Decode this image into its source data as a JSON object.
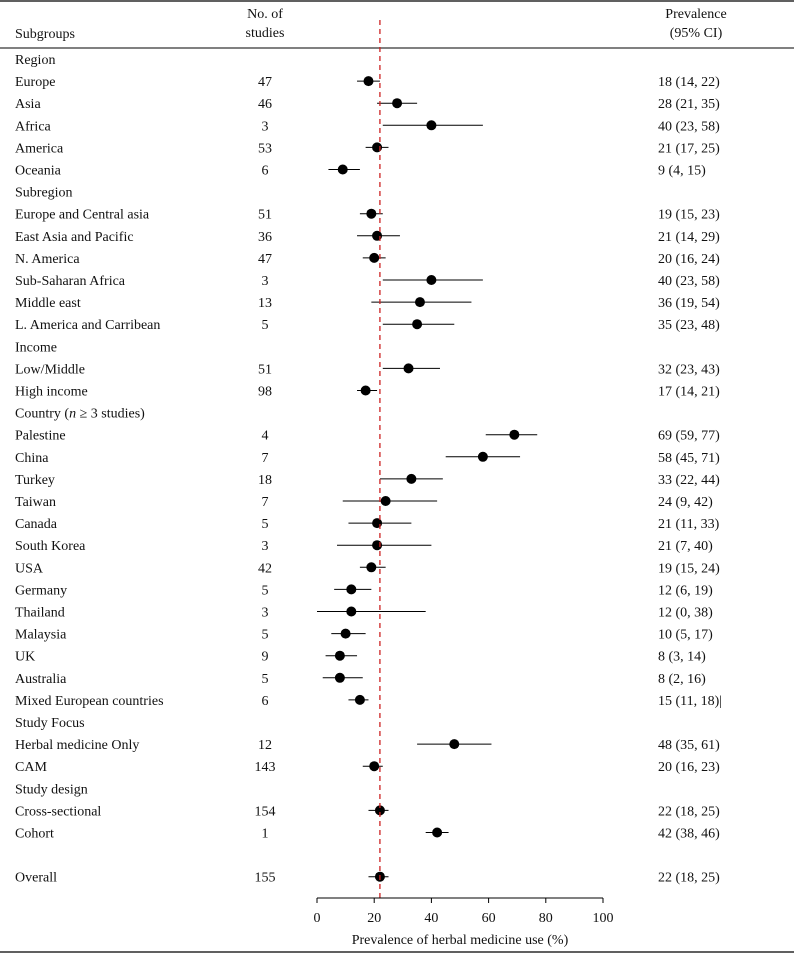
{
  "chart_data": {
    "type": "forest",
    "headers": {
      "subgroups": "Subgroups",
      "n_studies_line1": "No. of",
      "n_studies_line2": "studies",
      "prevalence_line1": "Prevalence",
      "prevalence_line2": "(95% CI)"
    },
    "xlabel": "Prevalence of herbal medicine use (%)",
    "xlim": [
      0,
      100
    ],
    "xticks": [
      0,
      20,
      40,
      60,
      80,
      100
    ],
    "reference_line": 22,
    "reference_color": "#cc2222",
    "marker_color": "#000000",
    "rows": [
      {
        "type": "header",
        "label": "Region"
      },
      {
        "type": "data",
        "label": "Europe",
        "n": "47",
        "est": 18,
        "lo": 14,
        "hi": 22,
        "ci": "18 (14, 22)"
      },
      {
        "type": "data",
        "label": "Asia",
        "n": "46",
        "est": 28,
        "lo": 21,
        "hi": 35,
        "ci": "28 (21, 35)"
      },
      {
        "type": "data",
        "label": "Africa",
        "n": "3",
        "est": 40,
        "lo": 23,
        "hi": 58,
        "ci": "40 (23, 58)"
      },
      {
        "type": "data",
        "label": "America",
        "n": "53",
        "est": 21,
        "lo": 17,
        "hi": 25,
        "ci": "21 (17, 25)"
      },
      {
        "type": "data",
        "label": "Oceania",
        "n": "6",
        "est": 9,
        "lo": 4,
        "hi": 15,
        "ci": "9 (4, 15)"
      },
      {
        "type": "header",
        "label": "Subregion"
      },
      {
        "type": "data",
        "label": "Europe and Central asia",
        "n": "51",
        "est": 19,
        "lo": 15,
        "hi": 23,
        "ci": "19 (15, 23)"
      },
      {
        "type": "data",
        "label": "East Asia and Pacific",
        "n": "36",
        "est": 21,
        "lo": 14,
        "hi": 29,
        "ci": "21 (14, 29)"
      },
      {
        "type": "data",
        "label": "N. America",
        "n": "47",
        "est": 20,
        "lo": 16,
        "hi": 24,
        "ci": "20 (16, 24)"
      },
      {
        "type": "data",
        "label": "Sub-Saharan Africa",
        "n": "3",
        "est": 40,
        "lo": 23,
        "hi": 58,
        "ci": "40 (23, 58)"
      },
      {
        "type": "data",
        "label": "Middle east",
        "n": "13",
        "est": 36,
        "lo": 19,
        "hi": 54,
        "ci": "36 (19, 54)"
      },
      {
        "type": "data",
        "label": "L. America and Carribean",
        "n": "5",
        "est": 35,
        "lo": 23,
        "hi": 48,
        "ci": "35 (23, 48)"
      },
      {
        "type": "header",
        "label": "Income"
      },
      {
        "type": "data",
        "label": "Low/Middle",
        "n": "51",
        "est": 32,
        "lo": 23,
        "hi": 43,
        "ci": "32 (23, 43)"
      },
      {
        "type": "data",
        "label": "High income",
        "n": "98",
        "est": 17,
        "lo": 14,
        "hi": 21,
        "ci": "17 (14, 21)"
      },
      {
        "type": "header",
        "label": "Country (n ≥ 3 studies)"
      },
      {
        "type": "data",
        "label": "Palestine",
        "n": "4",
        "est": 69,
        "lo": 59,
        "hi": 77,
        "ci": "69 (59, 77)"
      },
      {
        "type": "data",
        "label": "China",
        "n": "7",
        "est": 58,
        "lo": 45,
        "hi": 71,
        "ci": "58 (45, 71)"
      },
      {
        "type": "data",
        "label": "Turkey",
        "n": "18",
        "est": 33,
        "lo": 22,
        "hi": 44,
        "ci": "33 (22, 44)"
      },
      {
        "type": "data",
        "label": "Taiwan",
        "n": "7",
        "est": 24,
        "lo": 9,
        "hi": 42,
        "ci": "24 (9, 42)"
      },
      {
        "type": "data",
        "label": "Canada",
        "n": "5",
        "est": 21,
        "lo": 11,
        "hi": 33,
        "ci": "21 (11, 33)"
      },
      {
        "type": "data",
        "label": "South Korea",
        "n": "3",
        "est": 21,
        "lo": 7,
        "hi": 40,
        "ci": "21 (7, 40)"
      },
      {
        "type": "data",
        "label": "USA",
        "n": "42",
        "est": 19,
        "lo": 15,
        "hi": 24,
        "ci": "19 (15, 24)"
      },
      {
        "type": "data",
        "label": "Germany",
        "n": "5",
        "est": 12,
        "lo": 6,
        "hi": 19,
        "ci": "12 (6, 19)"
      },
      {
        "type": "data",
        "label": "Thailand",
        "n": "3",
        "est": 12,
        "lo": 0,
        "hi": 38,
        "ci": "12 (0, 38)"
      },
      {
        "type": "data",
        "label": "Malaysia",
        "n": "5",
        "est": 10,
        "lo": 5,
        "hi": 17,
        "ci": "10 (5, 17)"
      },
      {
        "type": "data",
        "label": "UK",
        "n": "9",
        "est": 8,
        "lo": 3,
        "hi": 14,
        "ci": "8 (3, 14)"
      },
      {
        "type": "data",
        "label": "Australia",
        "n": "5",
        "est": 8,
        "lo": 2,
        "hi": 16,
        "ci": "8 (2, 16)"
      },
      {
        "type": "data",
        "label": "Mixed European countries",
        "n": "6",
        "est": 15,
        "lo": 11,
        "hi": 18,
        "ci": "15 (11, 18)|"
      },
      {
        "type": "header",
        "label": "Study Focus"
      },
      {
        "type": "data",
        "label": "Herbal medicine Only",
        "n": "12",
        "est": 48,
        "lo": 35,
        "hi": 61,
        "ci": "48 (35, 61)"
      },
      {
        "type": "data",
        "label": "CAM",
        "n": "143",
        "est": 20,
        "lo": 16,
        "hi": 23,
        "ci": "20 (16, 23)"
      },
      {
        "type": "header",
        "label": "Study design"
      },
      {
        "type": "data",
        "label": "Cross-sectional",
        "n": "154",
        "est": 22,
        "lo": 18,
        "hi": 25,
        "ci": "22 (18, 25)"
      },
      {
        "type": "data",
        "label": "Cohort",
        "n": "1",
        "est": 42,
        "lo": 38,
        "hi": 46,
        "ci": "42 (38, 46)"
      },
      {
        "type": "spacer"
      },
      {
        "type": "data",
        "label": "Overall",
        "n": "155",
        "est": 22,
        "lo": 18,
        "hi": 25,
        "ci": "22 (18, 25)"
      }
    ]
  }
}
